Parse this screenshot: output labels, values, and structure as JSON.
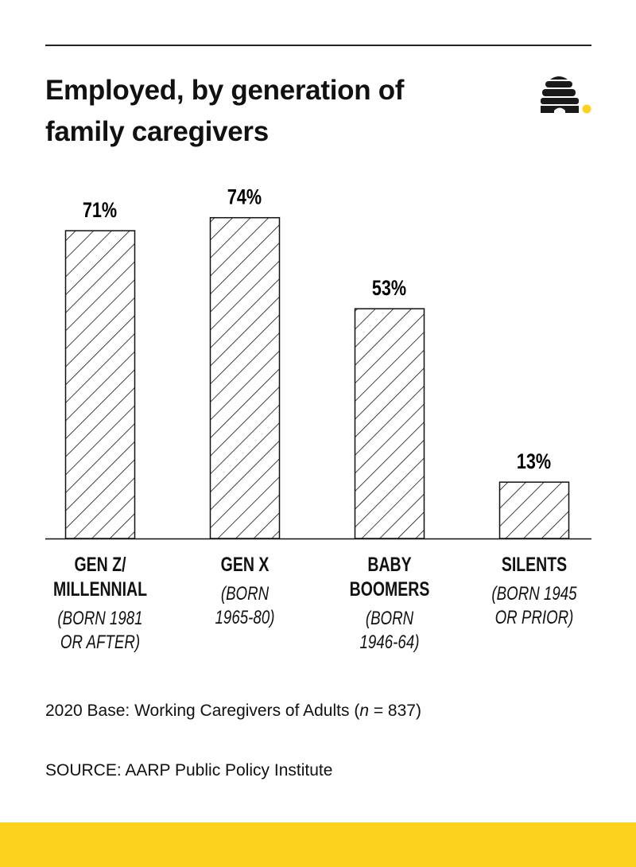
{
  "colors": {
    "bar_stroke": "#111111",
    "hatch": "#111111",
    "accent": "#FDD21F",
    "logo": "#1a1a1a"
  },
  "logo_icon": "beehive-icon",
  "chart_data": {
    "type": "bar",
    "title": "Employed, by generation of family caregivers",
    "categories": [
      {
        "name": "GEN Z/ MILLENNIAL",
        "born": "(BORN 1981 OR AFTER)",
        "name_lines": [
          "GEN Z/",
          "MILLENNIAL"
        ],
        "born_lines": [
          "(BORN 1981",
          "OR AFTER)"
        ]
      },
      {
        "name": "GEN X",
        "born": "(BORN 1965-80)",
        "name_lines": [
          "GEN X"
        ],
        "born_lines": [
          "(BORN",
          "1965-80)"
        ]
      },
      {
        "name": "BABY BOOMERS",
        "born": "(BORN 1946-64)",
        "name_lines": [
          "BABY",
          "BOOMERS"
        ],
        "born_lines": [
          "(BORN",
          "1946-64)"
        ]
      },
      {
        "name": "SILENTS",
        "born": "(BORN 1945 OR PRIOR)",
        "name_lines": [
          "SILENTS"
        ],
        "born_lines": [
          "(BORN 1945",
          "OR PRIOR)"
        ]
      }
    ],
    "values": [
      71,
      74,
      53,
      13
    ],
    "data_labels": [
      "71%",
      "74%",
      "53%",
      "13%"
    ],
    "unit": "%",
    "ylim": [
      0,
      100
    ],
    "grid": false,
    "bar_fill": "diagonal hatch"
  },
  "notes": {
    "base_prefix": "2020 Base: Working Caregivers of Adults (",
    "base_n": "n",
    "base_suffix": " = 837)",
    "source": "SOURCE: AARP Public Policy Institute"
  }
}
